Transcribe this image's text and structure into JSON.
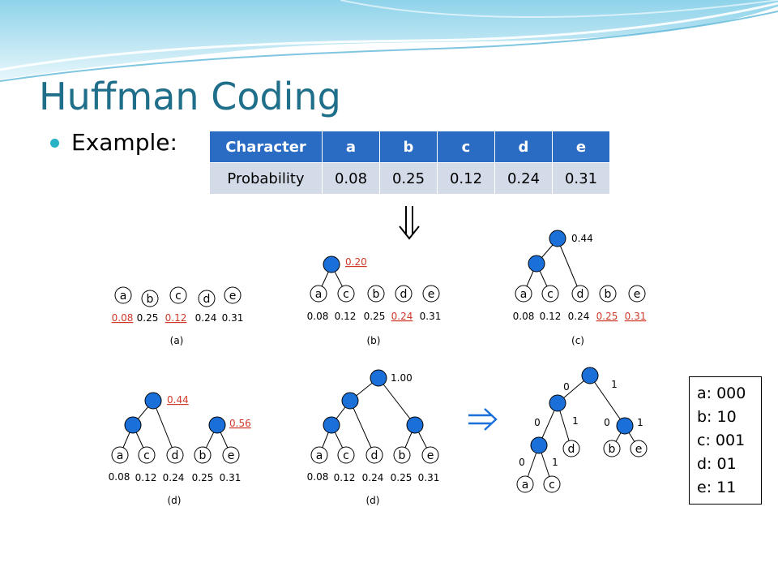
{
  "title": "Huffman Coding",
  "bullet": "Example:",
  "table": {
    "header_label": "Character",
    "row_label": "Probability",
    "characters": [
      "a",
      "b",
      "c",
      "d",
      "e"
    ],
    "probabilities": [
      "0.08",
      "0.25",
      "0.12",
      "0.24",
      "0.31"
    ]
  },
  "colors": {
    "title": "#1f6f8b",
    "table_header": "#2a6bc4",
    "table_row": "#d3dbe9",
    "node": "#1a6fd8",
    "highlight": "#d03a2a"
  },
  "steps": [
    {
      "caption": "(a)",
      "leaves": [
        "a",
        "b",
        "c",
        "d",
        "e"
      ],
      "probs": [
        "0.08",
        "0.25",
        "0.12",
        "0.24",
        "0.31"
      ],
      "highlight": [
        0,
        2
      ]
    },
    {
      "caption": "(b)",
      "root": "0.20",
      "leaves": [
        "a",
        "c",
        "b",
        "d",
        "e"
      ],
      "probs": [
        "0.08",
        "0.12",
        "0.25",
        "0.24",
        "0.31"
      ],
      "highlight": [
        3
      ]
    },
    {
      "caption": "(c)",
      "root": "0.44",
      "leaves": [
        "a",
        "c",
        "d",
        "b",
        "e"
      ],
      "probs": [
        "0.08",
        "0.12",
        "0.24",
        "0.25",
        "0.31"
      ],
      "highlight": [
        3,
        4
      ]
    },
    {
      "caption": "(d)",
      "roots": [
        "0.44",
        "0.56"
      ],
      "leaves": [
        "a",
        "c",
        "d",
        "b",
        "e"
      ],
      "probs": [
        "0.08",
        "0.12",
        "0.24",
        "0.25",
        "0.31"
      ]
    },
    {
      "caption": "(d)",
      "root": "1.00",
      "leaves": [
        "a",
        "c",
        "d",
        "b",
        "e"
      ],
      "probs": [
        "0.08",
        "0.12",
        "0.24",
        "0.25",
        "0.31"
      ]
    }
  ],
  "final_tree": {
    "leaves": [
      "d",
      "b",
      "e",
      "a",
      "c"
    ],
    "edge_labels": [
      "0",
      "1",
      "0",
      "1",
      "0",
      "1",
      "0",
      "1"
    ]
  },
  "codes": [
    "a: 000",
    "b: 10",
    "c: 001",
    "d: 01",
    "e: 11"
  ]
}
